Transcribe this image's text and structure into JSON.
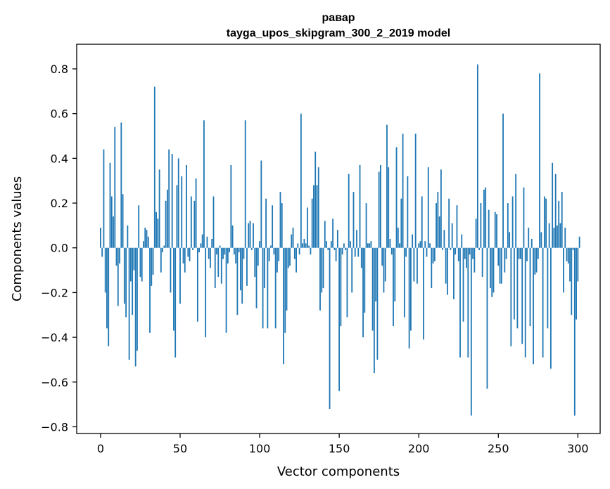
{
  "chart_data": {
    "type": "bar",
    "title_line1": "равар",
    "title_line2": "tayga_upos_skipgram_300_2_2019 model",
    "xlabel": "Vector components",
    "ylabel": "Components values",
    "xlim": [
      -15,
      314
    ],
    "ylim": [
      -0.83,
      0.91
    ],
    "x_ticks": [
      0,
      50,
      100,
      150,
      200,
      250,
      300
    ],
    "y_ticks": [
      -0.8,
      -0.6,
      -0.4,
      -0.2,
      0.0,
      0.2,
      0.4,
      0.6,
      0.8
    ],
    "x_tick_labels": [
      "0",
      "50",
      "100",
      "150",
      "200",
      "250",
      "300"
    ],
    "y_tick_labels": [
      "−0.8",
      "−0.6",
      "−0.4",
      "−0.2",
      "0.0",
      "0.2",
      "0.4",
      "0.6",
      "0.8"
    ],
    "bar_color": "#1f77b4",
    "values": [
      0.09,
      -0.04,
      0.44,
      -0.2,
      -0.36,
      -0.44,
      0.38,
      0.23,
      0.14,
      0.54,
      -0.08,
      -0.26,
      -0.07,
      0.56,
      0.24,
      -0.25,
      -0.31,
      0.1,
      -0.5,
      -0.15,
      -0.3,
      -0.1,
      -0.53,
      -0.46,
      0.19,
      -0.13,
      -0.15,
      0.03,
      0.09,
      0.08,
      0.05,
      -0.38,
      -0.17,
      -0.12,
      0.72,
      0.16,
      0.13,
      0.35,
      -0.11,
      -0.02,
      0.01,
      0.21,
      0.26,
      0.44,
      -0.2,
      0.42,
      -0.37,
      -0.49,
      0.28,
      0.4,
      -0.25,
      0.32,
      -0.07,
      -0.11,
      0.37,
      -0.04,
      -0.06,
      0.23,
      -0.01,
      0.21,
      0.31,
      -0.33,
      -0.02,
      0.02,
      0.06,
      0.57,
      -0.4,
      0.05,
      -0.05,
      -0.09,
      0.04,
      0.23,
      -0.18,
      -0.03,
      -0.13,
      0.01,
      -0.16,
      -0.05,
      -0.03,
      -0.38,
      -0.07,
      -0.02,
      0.37,
      0.1,
      -0.03,
      -0.07,
      -0.3,
      -0.02,
      -0.19,
      -0.25,
      -0.05,
      0.57,
      -0.17,
      0.11,
      0.12,
      -0.01,
      0.11,
      -0.13,
      -0.27,
      -0.08,
      0.03,
      0.39,
      -0.36,
      -0.18,
      0.22,
      -0.36,
      -0.06,
      0.01,
      0.19,
      -0.03,
      -0.36,
      -0.11,
      -0.06,
      0.25,
      0.2,
      -0.52,
      -0.38,
      -0.28,
      -0.09,
      -0.08,
      0.06,
      0.09,
      -0.05,
      -0.11,
      0.02,
      -0.03,
      0.6,
      0.02,
      0.04,
      0.02,
      0.18,
      0.01,
      -0.03,
      0.22,
      0.28,
      0.43,
      0.28,
      0.36,
      -0.28,
      -0.2,
      -0.18,
      0.12,
      0.03,
      -0.01,
      -0.72,
      0.03,
      0.13,
      -0.01,
      -0.06,
      0.08,
      -0.64,
      -0.35,
      -0.03,
      0.02,
      -0.01,
      -0.31,
      0.33,
      0.03,
      -0.2,
      0.25,
      -0.04,
      0.08,
      -0.04,
      0.37,
      -0.09,
      -0.4,
      -0.29,
      0.2,
      0.02,
      0.02,
      0.03,
      -0.37,
      -0.56,
      -0.24,
      -0.5,
      0.34,
      0.37,
      -0.08,
      -0.2,
      -0.15,
      0.55,
      0.36,
      0.04,
      -0.03,
      -0.35,
      -0.24,
      0.45,
      0.09,
      0.02,
      0.22,
      0.51,
      -0.31,
      -0.04,
      0.32,
      -0.45,
      -0.37,
      0.06,
      -0.15,
      0.51,
      -0.16,
      0.02,
      0.03,
      0.23,
      -0.41,
      0.03,
      -0.04,
      0.36,
      0.02,
      -0.18,
      -0.07,
      -0.06,
      0.2,
      0.25,
      0.14,
      0.35,
      -0.01,
      0.08,
      -0.16,
      -0.21,
      0.22,
      -0.01,
      0.11,
      -0.23,
      -0.03,
      0.19,
      -0.06,
      -0.49,
      0.06,
      -0.33,
      -0.05,
      -0.09,
      -0.49,
      -0.03,
      -0.75,
      -0.05,
      -0.11,
      0.13,
      0.82,
      -0.01,
      0.2,
      -0.13,
      0.26,
      0.27,
      -0.63,
      0.17,
      -0.18,
      -0.22,
      -0.2,
      0.16,
      0.15,
      -0.08,
      -0.16,
      -0.16,
      0.6,
      -0.11,
      -0.05,
      0.2,
      0.07,
      -0.44,
      0.23,
      -0.32,
      0.33,
      -0.36,
      -0.05,
      -0.05,
      -0.43,
      0.27,
      -0.49,
      -0.06,
      0.09,
      -0.35,
      0.04,
      -0.52,
      -0.12,
      -0.11,
      -0.05,
      0.78,
      0.07,
      -0.49,
      0.23,
      0.22,
      -0.36,
      0.11,
      -0.54,
      0.38,
      0.09,
      0.33,
      0.1,
      0.21,
      0.11,
      0.25,
      -0.2,
      0.09,
      -0.06,
      -0.07,
      -0.15,
      -0.3,
      -0.01,
      -0.75,
      -0.32,
      -0.15,
      0.05
    ]
  }
}
